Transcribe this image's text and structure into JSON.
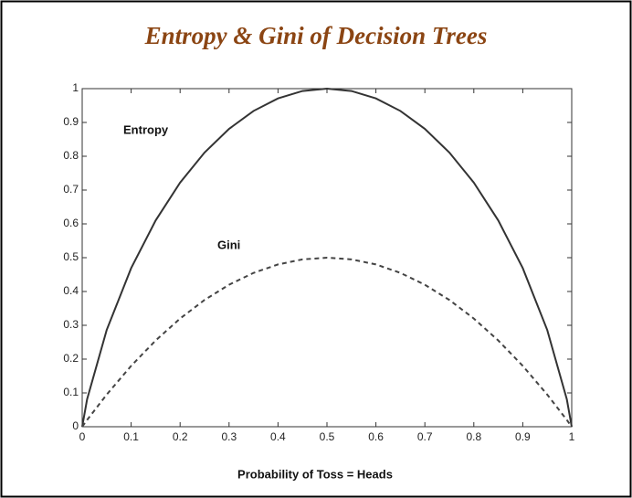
{
  "chart_data": {
    "type": "line",
    "title": "Entropy & Gini of Decision Trees",
    "x_label": "Probability of Toss = Heads",
    "annotations": [
      "Entropy",
      "Gini"
    ],
    "x": [
      0,
      0.01,
      0.05,
      0.1,
      0.15,
      0.2,
      0.25,
      0.3,
      0.35,
      0.4,
      0.45,
      0.5,
      0.55,
      0.6,
      0.65,
      0.7,
      0.75,
      0.8,
      0.85,
      0.9,
      0.95,
      0.99,
      1
    ],
    "series": [
      {
        "name": "Entropy",
        "color": "#333333",
        "dashed": false,
        "values": [
          0,
          0.081,
          0.286,
          0.469,
          0.61,
          0.722,
          0.811,
          0.881,
          0.934,
          0.971,
          0.993,
          1,
          0.993,
          0.971,
          0.934,
          0.881,
          0.811,
          0.722,
          0.61,
          0.469,
          0.286,
          0.081,
          0
        ]
      },
      {
        "name": "Gini",
        "color": "#444444",
        "dashed": true,
        "values": [
          0,
          0.02,
          0.095,
          0.18,
          0.255,
          0.32,
          0.375,
          0.42,
          0.455,
          0.48,
          0.495,
          0.5,
          0.495,
          0.48,
          0.455,
          0.42,
          0.375,
          0.32,
          0.255,
          0.18,
          0.095,
          0.02,
          0
        ]
      }
    ],
    "xlim": [
      0,
      1
    ],
    "ylim": [
      0,
      1
    ],
    "xticks": [
      0,
      0.1,
      0.2,
      0.3,
      0.4,
      0.5,
      0.6,
      0.7,
      0.8,
      0.9,
      1
    ],
    "yticks": [
      0,
      0.1,
      0.2,
      0.3,
      0.4,
      0.5,
      0.6,
      0.7,
      0.8,
      0.9,
      1
    ],
    "grid": false
  }
}
